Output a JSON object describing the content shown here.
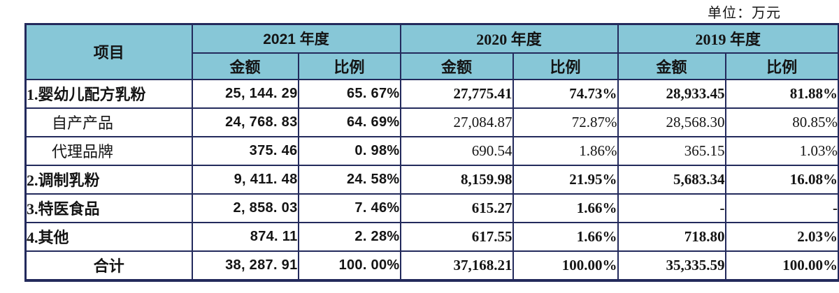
{
  "unit_label": "单位：万元",
  "colors": {
    "header_bg": "#87c7d7",
    "border": "#232a5c",
    "text": "#141414"
  },
  "table": {
    "header": {
      "item": "项目",
      "year_groups": [
        {
          "label": "2021 年度",
          "amount": "金额",
          "ratio": "比例"
        },
        {
          "label": "2020 年度",
          "amount": "金额",
          "ratio": "比例"
        },
        {
          "label": "2019 年度",
          "amount": "金额",
          "ratio": "比例"
        }
      ]
    },
    "rows": [
      {
        "label": "1.婴幼儿配方乳粉",
        "bold": true,
        "indent": false,
        "total": false,
        "cells": [
          "25, 144. 29",
          "65. 67%",
          "27,775.41",
          "74.73%",
          "28,933.45",
          "81.88%"
        ]
      },
      {
        "label": "自产产品",
        "bold": false,
        "indent": true,
        "total": false,
        "cells": [
          "24, 768. 83",
          "64. 69%",
          "27,084.87",
          "72.87%",
          "28,568.30",
          "80.85%"
        ]
      },
      {
        "label": "代理品牌",
        "bold": false,
        "indent": true,
        "total": false,
        "cells": [
          "375. 46",
          "0. 98%",
          "690.54",
          "1.86%",
          "365.15",
          "1.03%"
        ]
      },
      {
        "label": "2.调制乳粉",
        "bold": true,
        "indent": false,
        "total": false,
        "cells": [
          "9, 411. 48",
          "24. 58%",
          "8,159.98",
          "21.95%",
          "5,683.34",
          "16.08%"
        ]
      },
      {
        "label": "3.特医食品",
        "bold": true,
        "indent": false,
        "total": false,
        "cells": [
          "2, 858. 03",
          "7. 46%",
          "615.27",
          "1.66%",
          "-",
          "-"
        ]
      },
      {
        "label": "4.其他",
        "bold": true,
        "indent": false,
        "total": false,
        "cells": [
          "874. 11",
          "2. 28%",
          "617.55",
          "1.66%",
          "718.80",
          "2.03%"
        ]
      },
      {
        "label": "合计",
        "bold": true,
        "indent": false,
        "total": true,
        "cells": [
          "38, 287. 91",
          "100. 00%",
          "37,168.21",
          "100.00%",
          "35,335.59",
          "100.00%"
        ]
      }
    ]
  }
}
